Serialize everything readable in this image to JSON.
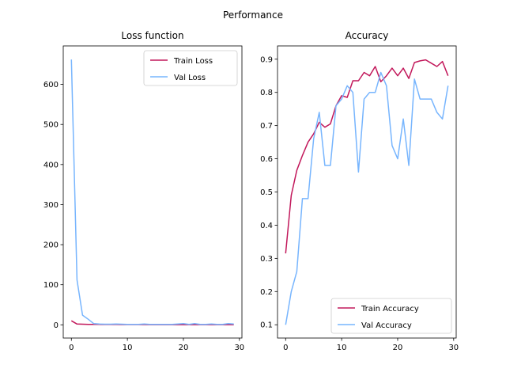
{
  "figure": {
    "suptitle": "Performance"
  },
  "chart_data": [
    {
      "type": "line",
      "title": "Loss function",
      "xlabel": "",
      "ylabel": "",
      "xlim": [
        -1.45,
        30.45
      ],
      "ylim": [
        -33,
        696
      ],
      "xticks": [
        0,
        10,
        20,
        30
      ],
      "yticks": [
        0,
        100,
        200,
        300,
        400,
        500,
        600
      ],
      "grid": false,
      "legend": "upper right",
      "x": [
        0,
        1,
        2,
        3,
        4,
        5,
        6,
        7,
        8,
        9,
        10,
        11,
        12,
        13,
        14,
        15,
        16,
        17,
        18,
        19,
        20,
        21,
        22,
        23,
        24,
        25,
        26,
        27,
        28,
        29
      ],
      "series": [
        {
          "name": "Train Loss",
          "color": "#c2185b",
          "values": [
            10,
            2,
            1.5,
            1.2,
            1.0,
            0.9,
            0.8,
            0.7,
            0.7,
            0.6,
            0.6,
            0.5,
            0.5,
            0.5,
            0.4,
            0.4,
            0.4,
            0.4,
            0.4,
            0.3,
            0.3,
            0.3,
            0.3,
            0.3,
            0.3,
            0.3,
            0.3,
            0.3,
            0.3,
            0.3
          ]
        },
        {
          "name": "Val Loss",
          "color": "#77b5fe",
          "values": [
            662,
            112,
            24,
            14,
            3,
            2,
            1.5,
            1.5,
            2,
            1.5,
            1,
            1,
            1,
            2,
            1,
            1,
            1,
            1,
            1,
            2,
            3,
            1,
            3,
            1,
            1,
            2,
            1,
            1,
            3,
            2
          ]
        }
      ]
    },
    {
      "type": "line",
      "title": "Accuracy",
      "xlabel": "",
      "ylabel": "",
      "xlim": [
        -1.45,
        30.45
      ],
      "ylim": [
        0.06,
        0.94
      ],
      "xticks": [
        0,
        10,
        20,
        30
      ],
      "yticks": [
        0.1,
        0.2,
        0.3,
        0.4,
        0.5,
        0.6,
        0.7,
        0.8,
        0.9
      ],
      "grid": false,
      "legend": "lower right",
      "x": [
        0,
        1,
        2,
        3,
        4,
        5,
        6,
        7,
        8,
        9,
        10,
        11,
        12,
        13,
        14,
        15,
        16,
        17,
        18,
        19,
        20,
        21,
        22,
        23,
        24,
        25,
        26,
        27,
        28,
        29
      ],
      "series": [
        {
          "name": "Train Accuracy",
          "color": "#c2185b",
          "values": [
            0.315,
            0.49,
            0.565,
            0.61,
            0.65,
            0.675,
            0.71,
            0.695,
            0.705,
            0.76,
            0.79,
            0.785,
            0.835,
            0.835,
            0.86,
            0.85,
            0.878,
            0.832,
            0.85,
            0.873,
            0.85,
            0.873,
            0.842,
            0.89,
            0.895,
            0.898,
            0.888,
            0.878,
            0.893,
            0.85
          ]
        },
        {
          "name": "Val Accuracy",
          "color": "#77b5fe",
          "values": [
            0.1,
            0.2,
            0.26,
            0.48,
            0.48,
            0.66,
            0.74,
            0.58,
            0.58,
            0.76,
            0.78,
            0.82,
            0.8,
            0.56,
            0.78,
            0.8,
            0.8,
            0.86,
            0.82,
            0.64,
            0.6,
            0.72,
            0.58,
            0.84,
            0.78,
            0.78,
            0.78,
            0.74,
            0.72,
            0.82
          ]
        }
      ]
    }
  ]
}
